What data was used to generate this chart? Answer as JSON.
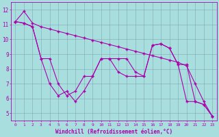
{
  "xlabel": "Windchill (Refroidissement éolien,°C)",
  "background_color": "#a8dede",
  "grid_color": "#7799aa",
  "line_color": "#aa00aa",
  "xlim": [
    -0.5,
    23.5
  ],
  "ylim": [
    4.5,
    12.5
  ],
  "yticks": [
    5,
    6,
    7,
    8,
    9,
    10,
    11,
    12
  ],
  "xticks": [
    0,
    1,
    2,
    3,
    4,
    5,
    6,
    7,
    8,
    9,
    10,
    11,
    12,
    13,
    14,
    15,
    16,
    17,
    18,
    19,
    20,
    21,
    22,
    23
  ],
  "line1_x": [
    0,
    1,
    2,
    3,
    4,
    5,
    6,
    7,
    8,
    9,
    10,
    11,
    12,
    13,
    14,
    15,
    16,
    17,
    18,
    19,
    20,
    21,
    22,
    23
  ],
  "line1_y": [
    11.2,
    11.9,
    11.1,
    10.85,
    10.7,
    10.55,
    10.4,
    10.25,
    10.1,
    9.95,
    9.8,
    9.65,
    9.5,
    9.35,
    9.2,
    9.05,
    8.9,
    8.75,
    8.6,
    8.45,
    8.2,
    7.0,
    5.8,
    4.8
  ],
  "line2_x": [
    0,
    1,
    2,
    3,
    4,
    5,
    6,
    7,
    8,
    9,
    10,
    11,
    12,
    13,
    14,
    15,
    16,
    17,
    18,
    19,
    20,
    21,
    22,
    23
  ],
  "line2_y": [
    11.2,
    11.1,
    10.85,
    8.7,
    8.7,
    7.0,
    6.2,
    6.5,
    7.5,
    7.5,
    8.7,
    8.7,
    8.7,
    8.7,
    7.8,
    7.5,
    9.6,
    9.7,
    9.4,
    8.3,
    8.3,
    5.8,
    5.6,
    4.8
  ],
  "line3_x": [
    0,
    1,
    2,
    3,
    4,
    5,
    6,
    7,
    8,
    9,
    10,
    11,
    12,
    13,
    14,
    15,
    16,
    17,
    18,
    19,
    20,
    21,
    22,
    23
  ],
  "line3_y": [
    11.2,
    11.1,
    10.85,
    8.7,
    7.0,
    6.2,
    6.5,
    5.8,
    6.5,
    7.5,
    8.7,
    8.7,
    7.8,
    7.5,
    7.5,
    7.5,
    9.6,
    9.7,
    9.4,
    8.3,
    5.8,
    5.8,
    5.6,
    4.8
  ]
}
